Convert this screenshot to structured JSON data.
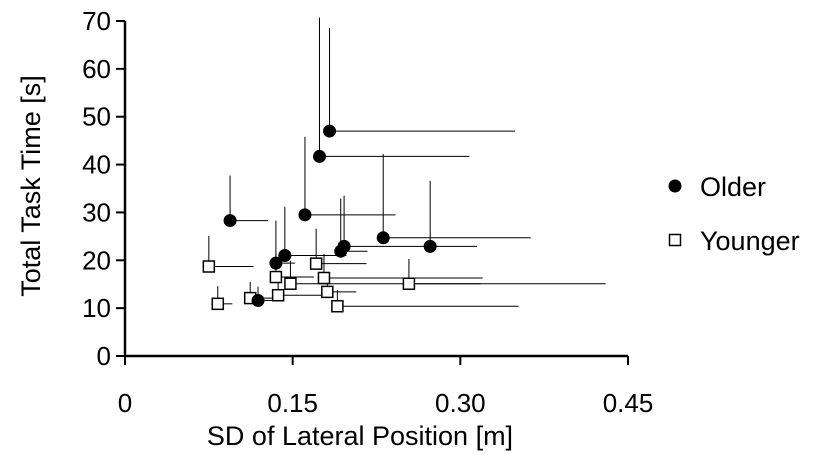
{
  "chart_data": {
    "type": "scatter",
    "xlabel": "SD of Lateral Position [m]",
    "ylabel": "Total Task Time [s]",
    "xlim": [
      0,
      0.45
    ],
    "ylim": [
      0,
      70
    ],
    "xticks": [
      0,
      0.15,
      0.3,
      0.45
    ],
    "xtick_labels": [
      "0",
      "0.15",
      "0.30",
      "0.45"
    ],
    "yticks": [
      0,
      10,
      20,
      30,
      40,
      50,
      60,
      70
    ],
    "ytick_labels": [
      "0",
      "10",
      "20",
      "30",
      "40",
      "50",
      "60",
      "70"
    ],
    "grid": false,
    "legend_position": "right",
    "error_bars": "one-sided (upward in y, rightward in x)",
    "series": [
      {
        "name": "Older",
        "marker": "filled-circle",
        "points": [
          {
            "x": 0.183,
            "y": 47.0,
            "x_err": 0.166,
            "y_err": 21.5
          },
          {
            "x": 0.174,
            "y": 41.7,
            "x_err": 0.134,
            "y_err": 29.0
          },
          {
            "x": 0.161,
            "y": 29.5,
            "x_err": 0.081,
            "y_err": 16.3
          },
          {
            "x": 0.094,
            "y": 28.3,
            "x_err": 0.034,
            "y_err": 9.4
          },
          {
            "x": 0.231,
            "y": 24.7,
            "x_err": 0.132,
            "y_err": 17.5
          },
          {
            "x": 0.273,
            "y": 22.9,
            "x_err": 0.042,
            "y_err": 13.7
          },
          {
            "x": 0.196,
            "y": 22.9,
            "x_err": 0.082,
            "y_err": 10.6
          },
          {
            "x": 0.193,
            "y": 21.9,
            "x_err": 0.024,
            "y_err": 11.0
          },
          {
            "x": 0.143,
            "y": 21.0,
            "x_err": 0.055,
            "y_err": 10.2
          },
          {
            "x": 0.135,
            "y": 19.4,
            "x_err": 0.017,
            "y_err": 8.9
          },
          {
            "x": 0.119,
            "y": 11.6,
            "x_err": 0.023,
            "y_err": 2.9
          }
        ]
      },
      {
        "name": "Younger",
        "marker": "open-square",
        "points": [
          {
            "x": 0.075,
            "y": 18.7,
            "x_err": 0.04,
            "y_err": 6.4
          },
          {
            "x": 0.171,
            "y": 19.3,
            "x_err": 0.045,
            "y_err": 7.3
          },
          {
            "x": 0.135,
            "y": 16.5,
            "x_err": 0.034,
            "y_err": 4.9
          },
          {
            "x": 0.178,
            "y": 16.3,
            "x_err": 0.142,
            "y_err": 5.0
          },
          {
            "x": 0.148,
            "y": 15.1,
            "x_err": 0.17,
            "y_err": 4.8
          },
          {
            "x": 0.254,
            "y": 15.1,
            "x_err": 0.176,
            "y_err": 5.2
          },
          {
            "x": 0.181,
            "y": 13.4,
            "x_err": 0.026,
            "y_err": 4.0
          },
          {
            "x": 0.137,
            "y": 12.7,
            "x_err": 0.049,
            "y_err": 4.9
          },
          {
            "x": 0.112,
            "y": 12.1,
            "x_err": 0.025,
            "y_err": 3.4
          },
          {
            "x": 0.083,
            "y": 10.9,
            "x_err": 0.013,
            "y_err": 3.7
          },
          {
            "x": 0.19,
            "y": 10.4,
            "x_err": 0.162,
            "y_err": 3.4
          }
        ]
      }
    ]
  }
}
